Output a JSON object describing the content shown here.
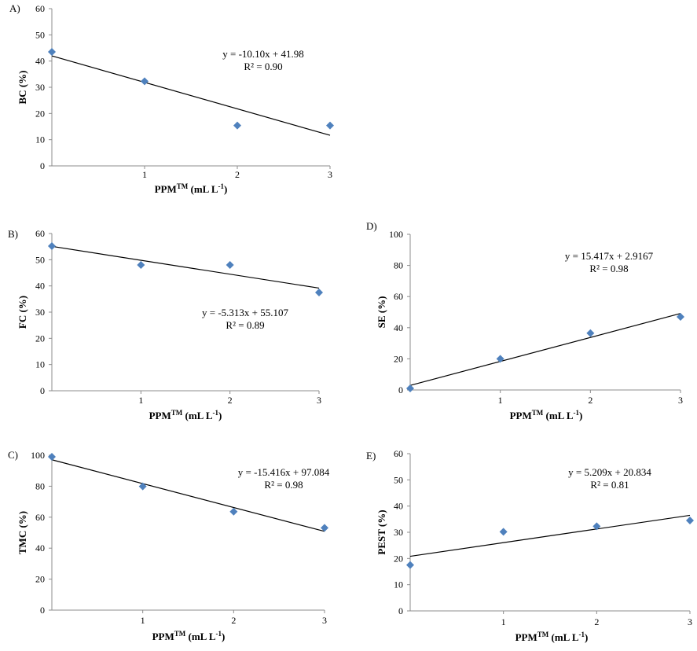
{
  "chart_data": [
    {
      "panel": "A)",
      "type": "scatter",
      "ylabel": "BC (%)",
      "xlabel_main": "PPM",
      "xlabel_sup": "TM",
      "xlabel_unit": "(mL L",
      "xlabel_exp": "-1",
      "xlabel_close": ")",
      "ylim": [
        0,
        60
      ],
      "yticks": [
        0,
        10,
        20,
        30,
        40,
        50,
        60
      ],
      "xlim": [
        0,
        3
      ],
      "xticks": [
        1,
        2,
        3
      ],
      "points": [
        [
          0,
          43.5
        ],
        [
          1,
          32.3
        ],
        [
          2,
          15.4
        ],
        [
          3,
          15.4
        ]
      ],
      "trend": {
        "slope": -10.1,
        "intercept": 41.98
      },
      "equation": "y = -10.10x + 41.98",
      "r2": "R² = 0.90",
      "marker_color": "#4f81bd"
    },
    {
      "panel": "B)",
      "type": "scatter",
      "ylabel": "FC (%)",
      "xlabel_main": "PPM",
      "xlabel_sup": "TM",
      "xlabel_unit": "(mL L",
      "xlabel_exp": "-1",
      "xlabel_close": ")",
      "ylim": [
        0,
        60
      ],
      "yticks": [
        0,
        10,
        20,
        30,
        40,
        50,
        60
      ],
      "xlim": [
        0,
        3
      ],
      "xticks": [
        1,
        2,
        3
      ],
      "points": [
        [
          0,
          55.2
        ],
        [
          1,
          48.0
        ],
        [
          2,
          48.0
        ],
        [
          3,
          37.5
        ]
      ],
      "trend": {
        "slope": -5.313,
        "intercept": 55.107
      },
      "equation": "y = -5.313x + 55.107",
      "r2": "R² = 0.89",
      "marker_color": "#4f81bd"
    },
    {
      "panel": "C)",
      "type": "scatter",
      "ylabel": "TMC (%)",
      "xlabel_main": "PPM",
      "xlabel_sup": "TM",
      "xlabel_unit": "(mL L",
      "xlabel_exp": "-1",
      "xlabel_close": ")",
      "ylim": [
        0,
        100
      ],
      "yticks": [
        0,
        20,
        40,
        60,
        80,
        100
      ],
      "xlim": [
        0,
        3
      ],
      "xticks": [
        1,
        2,
        3
      ],
      "points": [
        [
          0,
          99.0
        ],
        [
          1,
          79.9
        ],
        [
          2,
          63.6
        ],
        [
          3,
          53.1
        ]
      ],
      "trend": {
        "slope": -15.416,
        "intercept": 97.084
      },
      "equation": "y = -15.416x + 97.084",
      "r2": "R² = 0.98",
      "marker_color": "#4f81bd"
    },
    {
      "panel": "D)",
      "type": "scatter",
      "ylabel": "SE (%)",
      "xlabel_main": "PPM",
      "xlabel_sup": "TM",
      "xlabel_unit": "(mL L",
      "xlabel_exp": "-1",
      "xlabel_close": ")",
      "ylim": [
        0,
        100
      ],
      "yticks": [
        0,
        20,
        40,
        60,
        80,
        100
      ],
      "xlim": [
        0,
        3
      ],
      "xticks": [
        1,
        2,
        3
      ],
      "points": [
        [
          0,
          1.0
        ],
        [
          1,
          20.0
        ],
        [
          2,
          36.5
        ],
        [
          3,
          47.0
        ]
      ],
      "trend": {
        "slope": 15.417,
        "intercept": 2.9167
      },
      "equation": "y = 15.417x + 2.9167",
      "r2": "R² = 0.98",
      "marker_color": "#4f81bd"
    },
    {
      "panel": "E)",
      "type": "scatter",
      "ylabel": "PEST (%)",
      "xlabel_main": "PPM",
      "xlabel_sup": "TM",
      "xlabel_unit": "(mL L",
      "xlabel_exp": "-1",
      "xlabel_close": ")",
      "ylim": [
        0,
        60
      ],
      "yticks": [
        0,
        10,
        20,
        30,
        40,
        50,
        60
      ],
      "xlim": [
        0,
        3
      ],
      "xticks": [
        1,
        2,
        3
      ],
      "points": [
        [
          0,
          17.5
        ],
        [
          1,
          30.2
        ],
        [
          2,
          32.3
        ],
        [
          3,
          34.5
        ]
      ],
      "trend": {
        "slope": 5.209,
        "intercept": 20.834
      },
      "equation": "y = 5.209x + 20.834",
      "r2": "R² = 0.81",
      "marker_color": "#4f81bd"
    }
  ]
}
